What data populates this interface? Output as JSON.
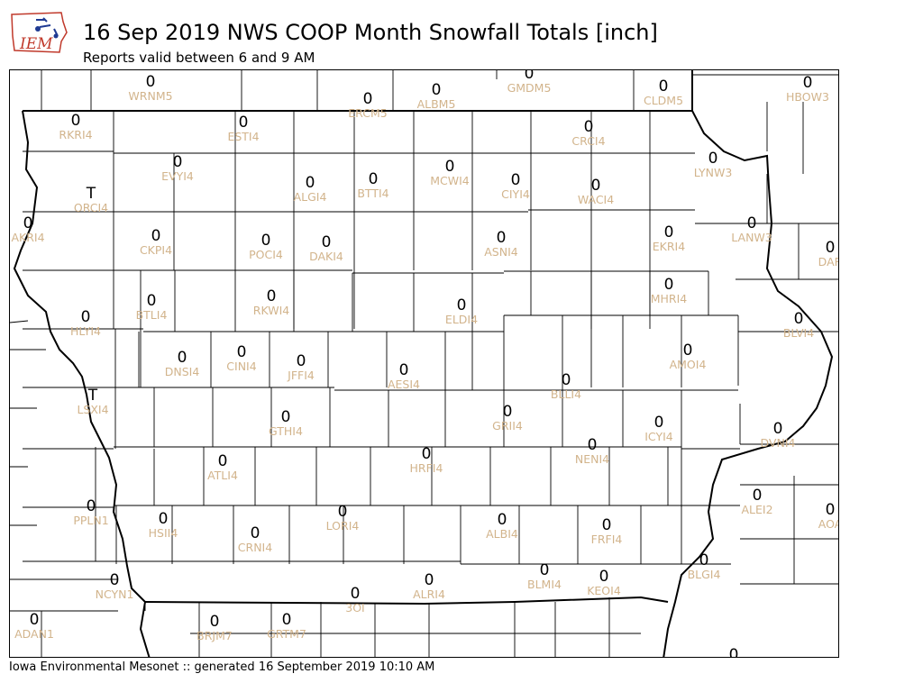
{
  "header": {
    "logo_text": "IEM",
    "title": "16 Sep 2019 NWS COOP Month Snowfall Totals [inch]",
    "subtitle": "Reports valid between 6 and 9 AM"
  },
  "footer": {
    "text": "Iowa Environmental Mesonet :: generated 16 September 2019 10:10 AM"
  },
  "stations": [
    {
      "id": "WRNM5",
      "value": "0"
    },
    {
      "id": "ERCM5",
      "value": "0"
    },
    {
      "id": "ALBM5",
      "value": "0"
    },
    {
      "id": "GMDM5",
      "value": "0"
    },
    {
      "id": "CLDM5",
      "value": "0"
    },
    {
      "id": "HBOW3",
      "value": "0"
    },
    {
      "id": "RKRI4",
      "value": "0"
    },
    {
      "id": "ESTI4",
      "value": "0"
    },
    {
      "id": "CRCI4",
      "value": "0"
    },
    {
      "id": "LYNW3",
      "value": "0"
    },
    {
      "id": "EVYI4",
      "value": "0"
    },
    {
      "id": "ORCI4",
      "value": "T"
    },
    {
      "id": "ALGI4",
      "value": "0"
    },
    {
      "id": "BTTI4",
      "value": "0"
    },
    {
      "id": "MCWI4",
      "value": "0"
    },
    {
      "id": "CIYI4",
      "value": "0"
    },
    {
      "id": "WACI4",
      "value": "0"
    },
    {
      "id": "AKRI4",
      "value": "0"
    },
    {
      "id": "CKPI4",
      "value": "0"
    },
    {
      "id": "POCI4",
      "value": "0"
    },
    {
      "id": "DAKI4",
      "value": "0"
    },
    {
      "id": "ASNI4",
      "value": "0"
    },
    {
      "id": "EKRI4",
      "value": "0"
    },
    {
      "id": "LANW3",
      "value": "0"
    },
    {
      "id": "DAR",
      "value": "0"
    },
    {
      "id": "BTLI4",
      "value": "0"
    },
    {
      "id": "RKWI4",
      "value": "0"
    },
    {
      "id": "ELDI4",
      "value": "0"
    },
    {
      "id": "MHRI4",
      "value": "0"
    },
    {
      "id": "HLYI4",
      "value": "0"
    },
    {
      "id": "BLVI4",
      "value": "0"
    },
    {
      "id": "DNSI4",
      "value": "0"
    },
    {
      "id": "CINI4",
      "value": "0"
    },
    {
      "id": "JFFI4",
      "value": "0"
    },
    {
      "id": "AESI4",
      "value": "0"
    },
    {
      "id": "BLLI4",
      "value": "0"
    },
    {
      "id": "AMOI4",
      "value": "0"
    },
    {
      "id": "LSXI4",
      "value": "T"
    },
    {
      "id": "GTHI4",
      "value": "0"
    },
    {
      "id": "GRII4",
      "value": "0"
    },
    {
      "id": "ICYI4",
      "value": "0"
    },
    {
      "id": "DVNI4",
      "value": "0"
    },
    {
      "id": "NENI4",
      "value": "0"
    },
    {
      "id": "HRFI4",
      "value": "0"
    },
    {
      "id": "ATLI4",
      "value": "0"
    },
    {
      "id": "PPLN1",
      "value": "0"
    },
    {
      "id": "ALEI2",
      "value": "0"
    },
    {
      "id": "HSII4",
      "value": "0"
    },
    {
      "id": "LORI4",
      "value": "0"
    },
    {
      "id": "ALBI4",
      "value": "0"
    },
    {
      "id": "FRFI4",
      "value": "0"
    },
    {
      "id": "AOA",
      "value": "0"
    },
    {
      "id": "CRNI4",
      "value": "0"
    },
    {
      "id": "BLGI4",
      "value": "0"
    },
    {
      "id": "NCYN1",
      "value": "0"
    },
    {
      "id": "ALRI4",
      "value": "0"
    },
    {
      "id": "BLMI4",
      "value": "0"
    },
    {
      "id": "KEOI4",
      "value": "0"
    },
    {
      "id": "3OI",
      "value": "0"
    },
    {
      "id": "ADAN1",
      "value": "0"
    },
    {
      "id": "BRJM7",
      "value": "0"
    },
    {
      "id": "GRTM7",
      "value": "0"
    },
    {
      "id": "",
      "value": "0"
    }
  ]
}
